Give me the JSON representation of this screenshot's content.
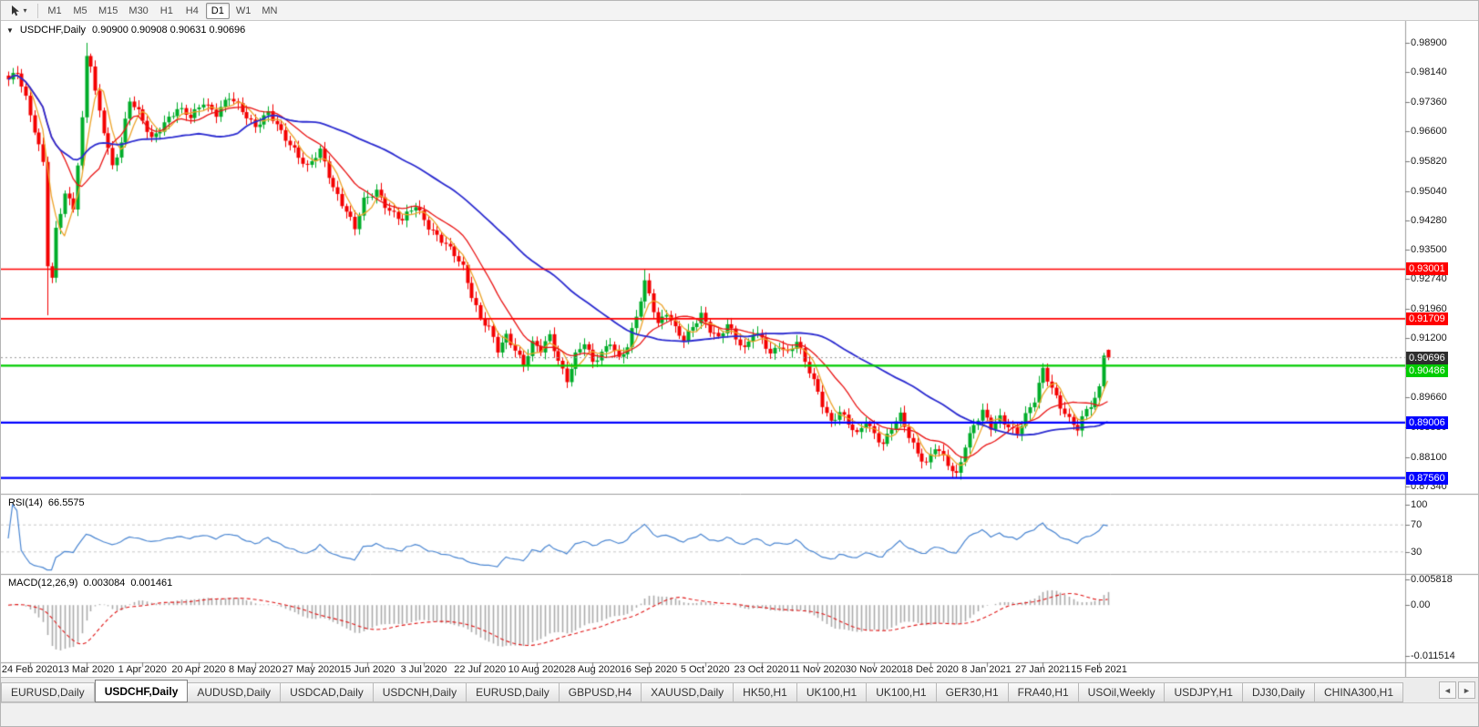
{
  "toolbar": {
    "timeframes": [
      "M1",
      "M5",
      "M15",
      "M30",
      "H1",
      "H4",
      "D1",
      "W1",
      "MN"
    ],
    "active_timeframe": "D1"
  },
  "icons": {
    "header_triangle": "▼",
    "dropdown_caret": "▾",
    "tabs_left_arrow": "◄",
    "tabs_right_arrow": "►"
  },
  "chart_data": {
    "type": "candlestick",
    "symbol": "USDCHF",
    "period": "Daily",
    "title": "USDCHF,Daily",
    "ohlc_text": "0.90900 0.90908 0.90631 0.90696",
    "last_ohlc": [
      0.909,
      0.90908,
      0.90631,
      0.90696
    ],
    "bars": 255,
    "candles": {
      "up_color": "#00ad29",
      "down_color": "#f40000"
    },
    "price_axis": {
      "min": 0.87149,
      "max": 0.9947,
      "labels": [
        "0.98900",
        "0.98140",
        "0.97360",
        "0.96600",
        "0.95820",
        "0.95040",
        "0.94280",
        "0.93500",
        "0.92740",
        "0.91960",
        "0.91200",
        "0.90420",
        "0.89660",
        "0.88880",
        "0.88100",
        "0.87340"
      ]
    },
    "time_axis": {
      "labels": [
        "24 Feb 2020",
        "13 Mar 2020",
        "1 Apr 2020",
        "20 Apr 2020",
        "8 May 2020",
        "27 May 2020",
        "15 Jun 2020",
        "3 Jul 2020",
        "22 Jul 2020",
        "10 Aug 2020",
        "28 Aug 2020",
        "16 Sep 2020",
        "5 Oct 2020",
        "23 Oct 2020",
        "11 Nov 2020",
        "30 Nov 2020",
        "18 Dec 2020",
        "8 Jan 2021",
        "27 Jan 2021",
        "15 Feb 2021"
      ],
      "first_bar": 5,
      "bar_interval": 13
    },
    "close_waypoints": [
      [
        0,
        0.979
      ],
      [
        2,
        0.9815
      ],
      [
        4,
        0.975
      ],
      [
        6,
        0.9665
      ],
      [
        8,
        0.9575
      ],
      [
        9,
        0.931
      ],
      [
        10,
        0.927
      ],
      [
        11,
        0.94
      ],
      [
        13,
        0.95
      ],
      [
        15,
        0.9465
      ],
      [
        17,
        0.969
      ],
      [
        18,
        0.9855
      ],
      [
        19,
        0.983
      ],
      [
        20,
        0.9755
      ],
      [
        22,
        0.966
      ],
      [
        24,
        0.957
      ],
      [
        26,
        0.9635
      ],
      [
        28,
        0.974
      ],
      [
        30,
        0.9705
      ],
      [
        33,
        0.964
      ],
      [
        36,
        0.9685
      ],
      [
        39,
        0.9715
      ],
      [
        42,
        0.9695
      ],
      [
        45,
        0.974
      ],
      [
        48,
        0.9705
      ],
      [
        51,
        0.9745
      ],
      [
        54,
        0.9715
      ],
      [
        57,
        0.9675
      ],
      [
        60,
        0.9705
      ],
      [
        63,
        0.9655
      ],
      [
        66,
        0.9615
      ],
      [
        69,
        0.9565
      ],
      [
        72,
        0.9605
      ],
      [
        75,
        0.9515
      ],
      [
        78,
        0.9455
      ],
      [
        80,
        0.9405
      ],
      [
        82,
        0.9475
      ],
      [
        85,
        0.9505
      ],
      [
        88,
        0.9455
      ],
      [
        91,
        0.9425
      ],
      [
        94,
        0.9465
      ],
      [
        97,
        0.9415
      ],
      [
        100,
        0.9375
      ],
      [
        103,
        0.9335
      ],
      [
        105,
        0.9305
      ],
      [
        107,
        0.9235
      ],
      [
        109,
        0.9175
      ],
      [
        111,
        0.9145
      ],
      [
        113,
        0.9085
      ],
      [
        115,
        0.9125
      ],
      [
        117,
        0.9095
      ],
      [
        119,
        0.9055
      ],
      [
        121,
        0.9105
      ],
      [
        123,
        0.9085
      ],
      [
        125,
        0.9125
      ],
      [
        127,
        0.9065
      ],
      [
        129,
        0.9015
      ],
      [
        131,
        0.9075
      ],
      [
        133,
        0.9105
      ],
      [
        135,
        0.9055
      ],
      [
        137,
        0.9085
      ],
      [
        139,
        0.9115
      ],
      [
        141,
        0.9065
      ],
      [
        143,
        0.9095
      ],
      [
        145,
        0.9175
      ],
      [
        147,
        0.9268
      ],
      [
        148,
        0.924
      ],
      [
        150,
        0.916
      ],
      [
        152,
        0.9185
      ],
      [
        154,
        0.914
      ],
      [
        156,
        0.9115
      ],
      [
        158,
        0.9155
      ],
      [
        160,
        0.9185
      ],
      [
        162,
        0.914
      ],
      [
        164,
        0.9115
      ],
      [
        166,
        0.9155
      ],
      [
        168,
        0.9125
      ],
      [
        170,
        0.9095
      ],
      [
        172,
        0.9135
      ],
      [
        174,
        0.9115
      ],
      [
        176,
        0.9075
      ],
      [
        178,
        0.9105
      ],
      [
        180,
        0.9085
      ],
      [
        182,
        0.9115
      ],
      [
        184,
        0.9055
      ],
      [
        186,
        0.9005
      ],
      [
        188,
        0.895
      ],
      [
        190,
        0.8905
      ],
      [
        192,
        0.893
      ],
      [
        194,
        0.8895
      ],
      [
        196,
        0.8865
      ],
      [
        198,
        0.8905
      ],
      [
        200,
        0.8875
      ],
      [
        202,
        0.8845
      ],
      [
        204,
        0.8885
      ],
      [
        206,
        0.8915
      ],
      [
        208,
        0.8865
      ],
      [
        210,
        0.8825
      ],
      [
        212,
        0.8795
      ],
      [
        214,
        0.8835
      ],
      [
        216,
        0.8805
      ],
      [
        218,
        0.8775
      ],
      [
        219,
        0.8765
      ],
      [
        221,
        0.8845
      ],
      [
        223,
        0.8895
      ],
      [
        225,
        0.8925
      ],
      [
        227,
        0.8885
      ],
      [
        229,
        0.8915
      ],
      [
        231,
        0.8895
      ],
      [
        233,
        0.8875
      ],
      [
        235,
        0.8915
      ],
      [
        237,
        0.8955
      ],
      [
        239,
        0.904
      ],
      [
        241,
        0.8995
      ],
      [
        243,
        0.8945
      ],
      [
        245,
        0.8905
      ],
      [
        247,
        0.888
      ],
      [
        249,
        0.8935
      ],
      [
        251,
        0.8965
      ],
      [
        252,
        0.8995
      ],
      [
        253,
        0.9075
      ],
      [
        254,
        0.907
      ]
    ],
    "special_wicks": [
      {
        "i": 9,
        "low": 0.918
      },
      {
        "i": 18,
        "high": 0.989
      },
      {
        "i": 147,
        "high": 0.93
      },
      {
        "i": 219,
        "low": 0.8757
      },
      {
        "i": 253,
        "high": 0.9082
      }
    ],
    "hlines": [
      {
        "price": 0.93001,
        "label": "0.93001",
        "color": "#ff0000",
        "width": 1.6
      },
      {
        "price": 0.91709,
        "label": "0.91709",
        "color": "#ff0000",
        "width": 1.6
      },
      {
        "price": 0.90486,
        "label": "0.90486",
        "color": "#00cc00",
        "width": 2.2
      },
      {
        "price": 0.89006,
        "label": "0.89006",
        "color": "#0000ff",
        "width": 2.2
      },
      {
        "price": 0.8756,
        "label": "0.87560",
        "color": "#0000ff",
        "width": 2.2
      }
    ],
    "current_price": {
      "value": 0.90696,
      "label": "0.90696",
      "color": "#2e2e2e"
    },
    "moving_averages": [
      {
        "period": 5,
        "color": "#eda42a"
      },
      {
        "period": 13,
        "color": "#ea1515"
      },
      {
        "period": 45,
        "color": "#2b2bd0"
      }
    ],
    "rsi": {
      "name": "RSI(14)",
      "value": "66.5575",
      "period": 14,
      "color": "#4a86d2",
      "levels": [
        70,
        30
      ],
      "axis_labels": [
        "100",
        "70",
        "30"
      ]
    },
    "macd": {
      "name": "MACD(12,26,9)",
      "value_main": "0.003084",
      "value_signal": "0.001461",
      "fast": 12,
      "slow": 26,
      "signal": 9,
      "hist_color": "#ababab",
      "signal_color": "#e01616",
      "axis_top": 0.005818,
      "axis_bottom": -0.011514,
      "axis_labels": [
        "0.005818",
        "0.00",
        "-0.011514"
      ]
    }
  },
  "tabs": {
    "items": [
      "EURUSD,Daily",
      "USDCHF,Daily",
      "AUDUSD,Daily",
      "USDCAD,Daily",
      "USDCNH,Daily",
      "EURUSD,Daily",
      "GBPUSD,H4",
      "XAUUSD,Daily",
      "HK50,H1",
      "UK100,H1",
      "UK100,H1",
      "GER30,H1",
      "FRA40,H1",
      "USOil,Weekly",
      "USDJPY,H1",
      "DJ30,Daily",
      "CHINA300,H1"
    ],
    "active_index": 1
  }
}
